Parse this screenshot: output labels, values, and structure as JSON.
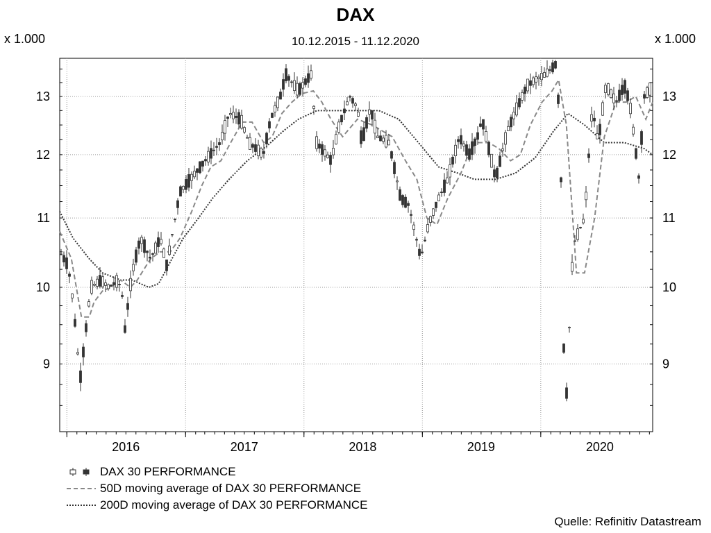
{
  "title": "DAX",
  "subtitle": "10.12.2015 - 11.12.2020",
  "unit_label": "x 1.000",
  "source": "Quelle: Refinitiv Datastream",
  "colors": {
    "candle": "#333333",
    "ma50": "#888888",
    "ma200": "#333333",
    "grid": "#9a9a9a"
  },
  "chart_data": {
    "type": "line",
    "title": "DAX",
    "subtitle": "10.12.2015 - 11.12.2020",
    "ylabel": "x 1.000",
    "ylog": true,
    "ylim": [
      8.2,
      13.7
    ],
    "yticks": [
      9,
      10,
      11,
      12,
      13
    ],
    "xlim": [
      "2015-12-10",
      "2020-12-11"
    ],
    "xticks": [
      "2016",
      "2017",
      "2018",
      "2019",
      "2020"
    ],
    "grid": true,
    "legend_position": "bottom",
    "series": [
      {
        "name": "DAX 30 PERFORMANCE",
        "style": "candlestick",
        "x": [
          "2015-12-10",
          "2016-01-05",
          "2016-01-20",
          "2016-02-11",
          "2016-02-25",
          "2016-03-15",
          "2016-04-15",
          "2016-05-10",
          "2016-06-08",
          "2016-06-24",
          "2016-06-27",
          "2016-07-20",
          "2016-08-15",
          "2016-09-15",
          "2016-10-15",
          "2016-11-04",
          "2016-11-15",
          "2016-12-15",
          "2017-01-15",
          "2017-02-15",
          "2017-03-17",
          "2017-04-18",
          "2017-05-15",
          "2017-06-20",
          "2017-07-15",
          "2017-08-29",
          "2017-09-20",
          "2017-10-20",
          "2017-11-06",
          "2017-12-15",
          "2018-01-23",
          "2018-02-09",
          "2018-03-26",
          "2018-04-20",
          "2018-05-22",
          "2018-06-15",
          "2018-06-28",
          "2018-07-25",
          "2018-08-15",
          "2018-09-20",
          "2018-10-26",
          "2018-11-20",
          "2018-12-27",
          "2019-01-20",
          "2019-02-20",
          "2019-03-20",
          "2019-04-25",
          "2019-05-25",
          "2019-06-20",
          "2019-07-04",
          "2019-08-15",
          "2019-09-20",
          "2019-10-20",
          "2019-11-20",
          "2019-12-15",
          "2020-01-15",
          "2020-02-19",
          "2020-03-02",
          "2020-03-12",
          "2020-03-18",
          "2020-04-10",
          "2020-05-15",
          "2020-06-08",
          "2020-06-26",
          "2020-07-20",
          "2020-08-20",
          "2020-09-15",
          "2020-10-01",
          "2020-10-30",
          "2020-11-15",
          "2020-12-11"
        ],
        "values": [
          10.5,
          10.3,
          9.8,
          8.8,
          9.3,
          10.0,
          10.1,
          10.0,
          10.1,
          9.8,
          9.4,
          10.2,
          10.7,
          10.4,
          10.7,
          10.3,
          10.6,
          11.4,
          11.6,
          11.8,
          12.0,
          12.2,
          12.7,
          12.6,
          12.2,
          12.0,
          12.6,
          13.0,
          13.4,
          13.1,
          13.4,
          12.2,
          11.9,
          12.5,
          13.0,
          12.8,
          12.2,
          12.8,
          12.3,
          12.2,
          11.3,
          11.2,
          10.4,
          10.9,
          11.3,
          11.6,
          12.3,
          12.0,
          12.3,
          12.6,
          11.6,
          12.4,
          12.8,
          13.2,
          13.3,
          13.4,
          13.6,
          12.0,
          9.2,
          8.4,
          10.6,
          11.0,
          12.8,
          12.2,
          13.2,
          12.9,
          13.2,
          12.9,
          11.6,
          13.0,
          13.2
        ]
      },
      {
        "name": "50D moving average of DAX 30 PERFORMANCE",
        "style": "dashed",
        "x": [
          "2015-12-10",
          "2016-01-15",
          "2016-02-15",
          "2016-03-10",
          "2016-03-25",
          "2016-04-20",
          "2016-05-15",
          "2016-06-15",
          "2016-07-15",
          "2016-08-05",
          "2016-09-15",
          "2016-10-15",
          "2016-11-15",
          "2016-12-15",
          "2017-01-20",
          "2017-02-20",
          "2017-03-20",
          "2017-04-20",
          "2017-05-20",
          "2017-06-25",
          "2017-07-25",
          "2017-08-30",
          "2017-09-25",
          "2017-10-25",
          "2017-11-25",
          "2017-12-25",
          "2018-01-30",
          "2018-02-25",
          "2018-03-25",
          "2018-04-30",
          "2018-06-15",
          "2018-07-30",
          "2018-08-30",
          "2018-09-30",
          "2018-11-10",
          "2018-12-15",
          "2019-01-15",
          "2019-02-15",
          "2019-03-20",
          "2019-04-30",
          "2019-05-30",
          "2019-06-20",
          "2019-07-25",
          "2019-08-25",
          "2019-09-30",
          "2019-10-30",
          "2019-11-30",
          "2020-01-05",
          "2020-02-05",
          "2020-02-25",
          "2020-03-20",
          "2020-04-20",
          "2020-05-15",
          "2020-06-15",
          "2020-07-15",
          "2020-08-20",
          "2020-09-20",
          "2020-10-20",
          "2020-11-20",
          "2020-12-11"
        ],
        "values": [
          10.8,
          10.4,
          9.6,
          9.6,
          9.8,
          9.95,
          10.0,
          10.1,
          10.0,
          10.1,
          10.4,
          10.5,
          10.5,
          10.7,
          11.1,
          11.5,
          11.8,
          11.9,
          12.2,
          12.55,
          12.55,
          12.2,
          12.3,
          12.7,
          12.9,
          13.05,
          13.1,
          12.9,
          12.6,
          12.3,
          12.6,
          12.5,
          12.4,
          12.3,
          11.9,
          11.6,
          11.0,
          10.9,
          11.3,
          11.7,
          12.1,
          12.2,
          12.2,
          12.1,
          11.9,
          12.0,
          12.5,
          12.9,
          13.1,
          13.3,
          12.5,
          10.2,
          10.2,
          11.0,
          12.3,
          12.9,
          12.9,
          13.0,
          12.6,
          12.9
        ]
      },
      {
        "name": "200D moving average of DAX 30 PERFORMANCE",
        "style": "dotted",
        "x": [
          "2015-12-10",
          "2016-01-20",
          "2016-03-10",
          "2016-04-20",
          "2016-06-15",
          "2016-07-20",
          "2016-09-10",
          "2016-10-10",
          "2016-11-20",
          "2016-12-25",
          "2017-02-10",
          "2017-03-25",
          "2017-05-15",
          "2017-07-10",
          "2017-09-10",
          "2017-10-30",
          "2017-12-15",
          "2018-02-10",
          "2018-04-10",
          "2018-06-15",
          "2018-08-20",
          "2018-10-20",
          "2018-12-20",
          "2019-02-20",
          "2019-04-20",
          "2019-06-10",
          "2019-08-15",
          "2019-10-15",
          "2019-12-15",
          "2020-02-10",
          "2020-03-25",
          "2020-05-15",
          "2020-07-15",
          "2020-09-15",
          "2020-11-15",
          "2020-12-11"
        ],
        "values": [
          11.1,
          10.7,
          10.4,
          10.2,
          10.1,
          10.1,
          10.0,
          10.05,
          10.4,
          10.7,
          11.0,
          11.3,
          11.6,
          11.9,
          12.15,
          12.4,
          12.6,
          12.75,
          12.75,
          12.75,
          12.75,
          12.6,
          12.2,
          11.8,
          11.7,
          11.6,
          11.6,
          11.7,
          11.95,
          12.4,
          12.7,
          12.5,
          12.2,
          12.2,
          12.1,
          12.0
        ]
      }
    ]
  },
  "legend": {
    "candle_label": "DAX 30 PERFORMANCE",
    "ma50_label": "50D moving average of DAX 30 PERFORMANCE",
    "ma200_label": "200D moving average of DAX 30 PERFORMANCE"
  }
}
